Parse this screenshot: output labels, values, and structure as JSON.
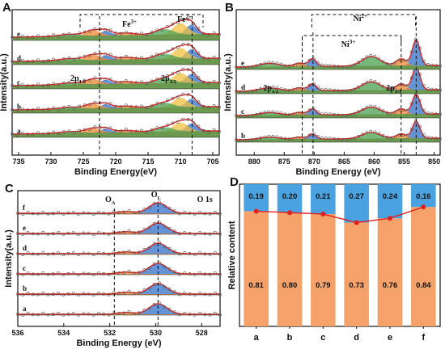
{
  "panels": [
    {
      "label": "A",
      "type": "line",
      "x_ticks": [
        735,
        730,
        725,
        720,
        715,
        710,
        705
      ],
      "xlim": [
        736,
        704
      ],
      "xlabel": "Binding Energy(eV)",
      "ylabel": "Intensity(a.u.)",
      "series": [
        "a",
        "b",
        "c",
        "d",
        "e"
      ],
      "annotations": [
        "Fe3+",
        "Fe2+",
        "2p1/2",
        "2p3/2"
      ],
      "dashed_lines_ev": [
        722.5,
        708.2
      ]
    },
    {
      "label": "B",
      "type": "line",
      "x_ticks": [
        880,
        875,
        870,
        865,
        860,
        855,
        850
      ],
      "xlim": [
        883,
        849
      ],
      "xlabel": "Binding Energy (eV)",
      "ylabel": "Intensity(a.u.)",
      "series": [
        "b",
        "c",
        "d",
        "e"
      ],
      "annotations": [
        "Ni2+",
        "Ni3+",
        "2p1/2",
        "2p3/2"
      ],
      "dashed_lines_ev": [
        872,
        870.2,
        855.5,
        853
      ]
    },
    {
      "label": "C",
      "type": "line",
      "x_ticks": [
        536,
        534,
        532,
        530,
        528
      ],
      "xlim": [
        536,
        527.2
      ],
      "xlabel": "Binding Energy (eV)",
      "ylabel": "Intensity(a.u.)",
      "series": [
        "a",
        "b",
        "c",
        "d",
        "e",
        "f"
      ],
      "annotations": [
        "OA",
        "OL",
        "O 1s"
      ],
      "dashed_lines_ev": [
        531.8,
        529.9
      ]
    }
  ],
  "chart_data": {
    "label": "D",
    "type": "bar",
    "categories": [
      "a",
      "b",
      "c",
      "d",
      "e",
      "f"
    ],
    "series": [
      {
        "values": [
          0.81,
          0.8,
          0.79,
          0.73,
          0.76,
          0.84
        ]
      },
      {
        "values": [
          0.19,
          0.2,
          0.21,
          0.27,
          0.24,
          0.16
        ]
      }
    ],
    "value_labels_bottom": [
      "0.81",
      "0.80",
      "0.79",
      "0.73",
      "0.76",
      "0.84"
    ],
    "value_labels_top": [
      "0.19",
      "0.20",
      "0.21",
      "0.27",
      "0.24",
      "0.16"
    ],
    "ylabel": "Relative content",
    "ylim": [
      0,
      1
    ],
    "line_color": "#e02020"
  },
  "ann_text": {
    "fe3": "Fe",
    "fe3_sup": "3+",
    "fe2": "Fe",
    "fe2_sup": "2+",
    "ni2": "Ni",
    "ni2_sup": "2+",
    "ni3": "Ni",
    "ni3_sup": "3+",
    "p12": "2p",
    "p12_sub": "1/2",
    "p32": "2p",
    "p32_sub": "3/2",
    "oa": "O",
    "oa_sub": "A",
    "ol": "O",
    "ol_sub": "L",
    "o1s": "O 1s"
  },
  "colors": {
    "red": "#e02020",
    "blue": "#3070c8",
    "orange": "#f08a30",
    "green": "#4aa050",
    "yellow": "#f0c040",
    "bar_orange": "#f5a26a",
    "bar_blue": "#4aa3e0"
  }
}
